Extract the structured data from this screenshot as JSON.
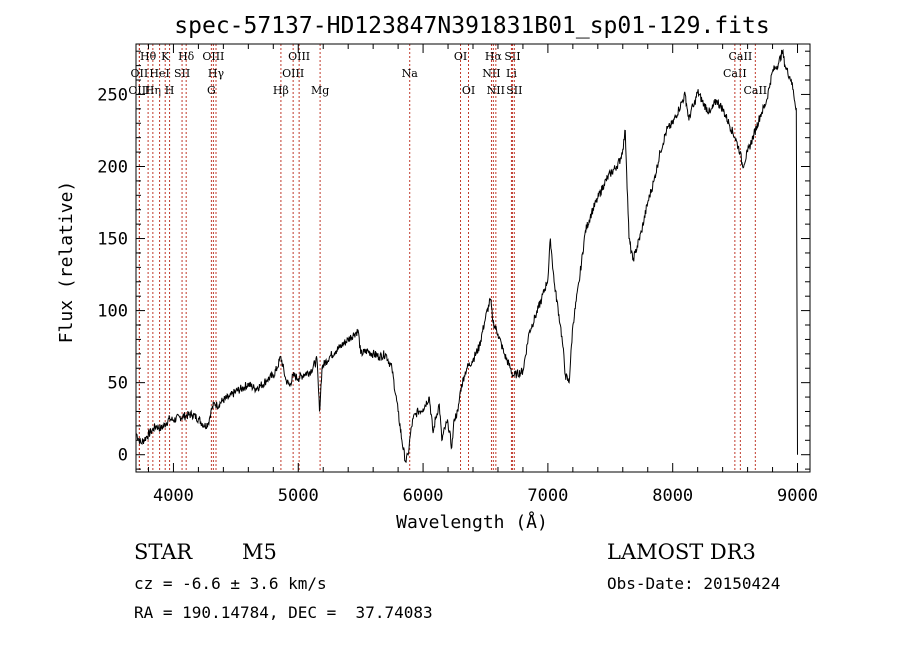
{
  "chart_data": {
    "type": "line",
    "title": "spec-57137-HD123847N391831B01_sp01-129.fits",
    "xlabel": "Wavelength (Å)",
    "ylabel": "Flux (relative)",
    "xlim": [
      3700,
      9100
    ],
    "ylim": [
      -12,
      285
    ],
    "xticks": [
      4000,
      5000,
      6000,
      7000,
      8000,
      9000
    ],
    "yticks": [
      0,
      50,
      100,
      150,
      200,
      250
    ],
    "grid": false,
    "series": [
      {
        "name": "spectrum",
        "x": [
          3700,
          3740,
          3780,
          3820,
          3860,
          3900,
          3940,
          3970,
          4000,
          4050,
          4100,
          4150,
          4200,
          4250,
          4280,
          4300,
          4330,
          4350,
          4400,
          4450,
          4500,
          4550,
          4600,
          4650,
          4700,
          4750,
          4800,
          4830,
          4860,
          4900,
          4930,
          4960,
          5000,
          5050,
          5100,
          5150,
          5170,
          5190,
          5200,
          5250,
          5300,
          5350,
          5400,
          5450,
          5480,
          5500,
          5550,
          5600,
          5650,
          5700,
          5750,
          5800,
          5830,
          5860,
          5880,
          5900,
          5920,
          5940,
          5960,
          6000,
          6050,
          6080,
          6100,
          6130,
          6150,
          6180,
          6200,
          6230,
          6250,
          6280,
          6300,
          6330,
          6350,
          6400,
          6450,
          6500,
          6540,
          6560,
          6600,
          6650,
          6700,
          6720,
          6750,
          6800,
          6850,
          6900,
          6950,
          7000,
          7020,
          7050,
          7100,
          7120,
          7140,
          7170,
          7200,
          7250,
          7300,
          7350,
          7400,
          7450,
          7500,
          7550,
          7580,
          7600,
          7620,
          7650,
          7680,
          7700,
          7750,
          7800,
          7850,
          7900,
          7950,
          8000,
          8050,
          8080,
          8100,
          8130,
          8150,
          8170,
          8200,
          8250,
          8300,
          8350,
          8400,
          8450,
          8500,
          8540,
          8560,
          8600,
          8650,
          8700,
          8750,
          8780,
          8800,
          8850,
          8880,
          8900,
          8950,
          8990,
          9000
        ],
        "values": [
          15,
          8,
          12,
          16,
          20,
          18,
          22,
          25,
          24,
          26,
          27,
          28,
          25,
          20,
          22,
          30,
          36,
          34,
          38,
          40,
          44,
          46,
          49,
          46,
          48,
          52,
          55,
          60,
          68,
          52,
          48,
          55,
          53,
          56,
          58,
          66,
          30,
          60,
          62,
          68,
          72,
          76,
          80,
          84,
          86,
          70,
          72,
          70,
          68,
          70,
          60,
          30,
          10,
          -5,
          0,
          15,
          25,
          28,
          30,
          32,
          40,
          15,
          25,
          35,
          10,
          20,
          22,
          5,
          25,
          30,
          45,
          55,
          60,
          66,
          75,
          95,
          108,
          92,
          84,
          70,
          60,
          55,
          56,
          58,
          85,
          96,
          108,
          122,
          150,
          120,
          90,
          75,
          55,
          50,
          90,
          120,
          155,
          168,
          178,
          188,
          195,
          200,
          205,
          212,
          225,
          150,
          135,
          140,
          155,
          175,
          190,
          210,
          225,
          230,
          240,
          246,
          250,
          232,
          240,
          242,
          252,
          243,
          237,
          246,
          240,
          230,
          220,
          210,
          200,
          210,
          222,
          235,
          245,
          258,
          266,
          272,
          280,
          270,
          260,
          240,
          0
        ]
      }
    ],
    "line_markers": [
      {
        "label": "OII",
        "wavelength": 3727,
        "row": 2
      },
      {
        "label": "OIII",
        "wavelength": 3727,
        "row": 3
      },
      {
        "label": "Hθ",
        "wavelength": 3797,
        "row": 1
      },
      {
        "label": "Hη",
        "wavelength": 3835,
        "row": 3
      },
      {
        "label": "HeI",
        "wavelength": 3889,
        "row": 2
      },
      {
        "label": "K",
        "wavelength": 3934,
        "row": 1
      },
      {
        "label": "H",
        "wavelength": 3969,
        "row": 3
      },
      {
        "label": "SII",
        "wavelength": 4069,
        "row": 2
      },
      {
        "label": "Hδ",
        "wavelength": 4102,
        "row": 1
      },
      {
        "label": "OIII",
        "wavelength": 4320,
        "row": 1
      },
      {
        "label": "Hγ",
        "wavelength": 4341,
        "row": 2
      },
      {
        "label": "G",
        "wavelength": 4304,
        "row": 3
      },
      {
        "label": "Hβ",
        "wavelength": 4861,
        "row": 3
      },
      {
        "label": "OIII",
        "wavelength": 4959,
        "row": 2
      },
      {
        "label": "OIII",
        "wavelength": 5007,
        "row": 1
      },
      {
        "label": "Mg",
        "wavelength": 5175,
        "row": 3
      },
      {
        "label": "Na",
        "wavelength": 5893,
        "row": 2
      },
      {
        "label": "OI",
        "wavelength": 6300,
        "row": 1
      },
      {
        "label": "OI",
        "wavelength": 6364,
        "row": 3
      },
      {
        "label": "NII",
        "wavelength": 6548,
        "row": 2
      },
      {
        "label": "Hα",
        "wavelength": 6563,
        "row": 1
      },
      {
        "label": "NII",
        "wavelength": 6583,
        "row": 3
      },
      {
        "label": "Li",
        "wavelength": 6708,
        "row": 2
      },
      {
        "label": "SII",
        "wavelength": 6716,
        "row": 1
      },
      {
        "label": "SII",
        "wavelength": 6731,
        "row": 3
      },
      {
        "label": "CaII",
        "wavelength": 8498,
        "row": 2
      },
      {
        "label": "CaII",
        "wavelength": 8542,
        "row": 1
      },
      {
        "label": "CaII",
        "wavelength": 8662,
        "row": 3
      }
    ]
  },
  "footer": {
    "class_label": "STAR",
    "subclass": "M5",
    "survey": "LAMOST DR3",
    "cz_text": "cz = -6.6 ± 3.6 km/s",
    "obs_date_text": "Obs-Date: 20150424",
    "coords_text": "RA = 190.14784, DEC =  37.74083"
  },
  "colors": {
    "line": "#000000",
    "marker": "#c0392b",
    "background": "#ffffff"
  }
}
